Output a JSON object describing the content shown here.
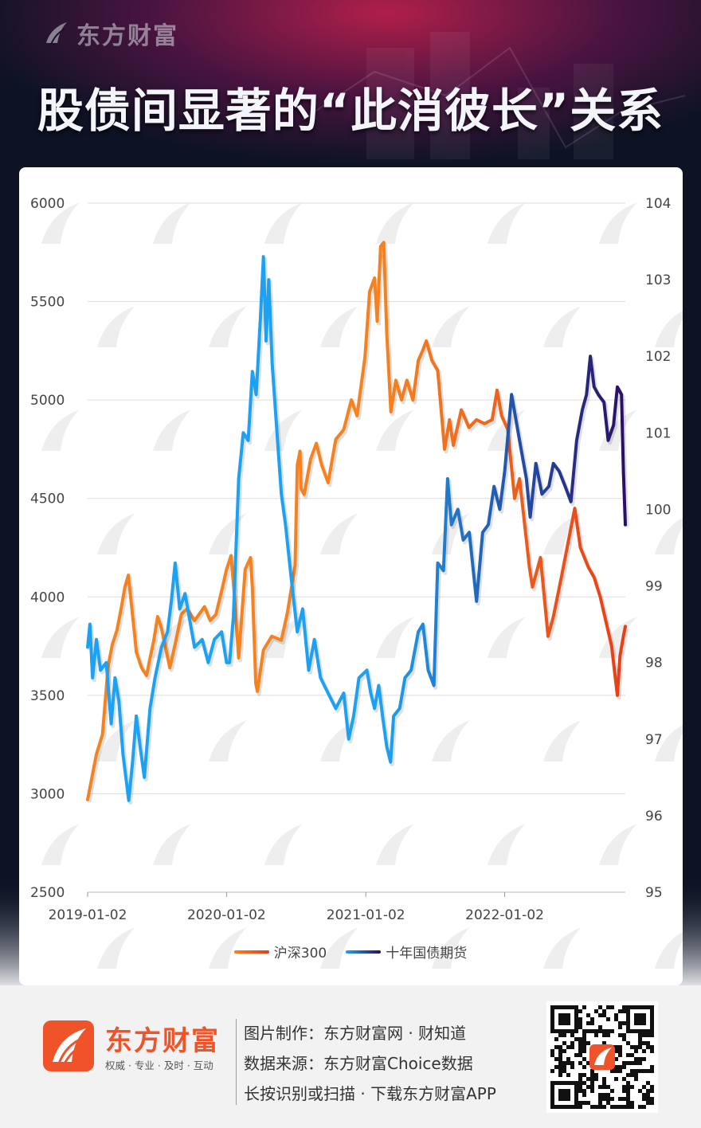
{
  "header": {
    "brand_watermark": "东方财富",
    "headline": "股债间显著的“此消彼长”关系"
  },
  "chart_data": {
    "type": "line",
    "title": "股债间显著的“此消彼长”关系",
    "x_ticks": [
      "2019-01-02",
      "2020-01-02",
      "2021-01-02",
      "2022-01-02"
    ],
    "x_range": [
      "2019-01-02",
      "2022-11-15"
    ],
    "y_left": {
      "ticks": [
        6000,
        5500,
        5000,
        4500,
        4000,
        3500,
        3000,
        2500
      ],
      "ylim": [
        2500,
        6000
      ]
    },
    "y_right": {
      "ticks": [
        104,
        103,
        102,
        101,
        100,
        99,
        98,
        97,
        96,
        95
      ],
      "ylim": [
        95,
        104
      ]
    },
    "grid": true,
    "legend_position": "bottom",
    "series": [
      {
        "name": "沪深300",
        "axis": "left",
        "color": "#f5821f",
        "end_color": "#e63f17",
        "points": [
          [
            "2019-01-02",
            2970
          ],
          [
            "2019-01-10",
            3050
          ],
          [
            "2019-01-25",
            3200
          ],
          [
            "2019-02-10",
            3300
          ],
          [
            "2019-02-25",
            3650
          ],
          [
            "2019-03-08",
            3760
          ],
          [
            "2019-03-20",
            3830
          ],
          [
            "2019-04-01",
            3950
          ],
          [
            "2019-04-10",
            4050
          ],
          [
            "2019-04-19",
            4110
          ],
          [
            "2019-05-06",
            3800
          ],
          [
            "2019-05-10",
            3720
          ],
          [
            "2019-05-24",
            3640
          ],
          [
            "2019-06-06",
            3600
          ],
          [
            "2019-06-14",
            3680
          ],
          [
            "2019-06-25",
            3780
          ],
          [
            "2019-07-05",
            3900
          ],
          [
            "2019-07-15",
            3840
          ],
          [
            "2019-08-06",
            3640
          ],
          [
            "2019-08-20",
            3760
          ],
          [
            "2019-09-05",
            3910
          ],
          [
            "2019-09-20",
            3940
          ],
          [
            "2019-10-10",
            3880
          ],
          [
            "2019-10-25",
            3920
          ],
          [
            "2019-11-05",
            3950
          ],
          [
            "2019-11-20",
            3880
          ],
          [
            "2019-12-05",
            3910
          ],
          [
            "2019-12-20",
            4030
          ],
          [
            "2020-01-02",
            4140
          ],
          [
            "2020-01-14",
            4210
          ],
          [
            "2020-01-23",
            4000
          ],
          [
            "2020-02-03",
            3690
          ],
          [
            "2020-02-20",
            4140
          ],
          [
            "2020-03-05",
            4200
          ],
          [
            "2020-03-10",
            4050
          ],
          [
            "2020-03-19",
            3560
          ],
          [
            "2020-03-23",
            3520
          ],
          [
            "2020-04-08",
            3730
          ],
          [
            "2020-04-30",
            3800
          ],
          [
            "2020-05-25",
            3780
          ],
          [
            "2020-06-10",
            3920
          ],
          [
            "2020-06-30",
            4160
          ],
          [
            "2020-07-06",
            4670
          ],
          [
            "2020-07-13",
            4740
          ],
          [
            "2020-07-16",
            4550
          ],
          [
            "2020-07-24",
            4520
          ],
          [
            "2020-08-10",
            4700
          ],
          [
            "2020-08-25",
            4780
          ],
          [
            "2020-09-08",
            4670
          ],
          [
            "2020-09-25",
            4580
          ],
          [
            "2020-10-15",
            4800
          ],
          [
            "2020-11-05",
            4850
          ],
          [
            "2020-11-25",
            5000
          ],
          [
            "2020-12-10",
            4920
          ],
          [
            "2020-12-31",
            5220
          ],
          [
            "2021-01-12",
            5550
          ],
          [
            "2021-01-25",
            5620
          ],
          [
            "2021-02-01",
            5400
          ],
          [
            "2021-02-10",
            5780
          ],
          [
            "2021-02-18",
            5800
          ],
          [
            "2021-02-26",
            5340
          ],
          [
            "2021-03-09",
            4940
          ],
          [
            "2021-03-22",
            5100
          ],
          [
            "2021-04-06",
            5000
          ],
          [
            "2021-04-20",
            5100
          ],
          [
            "2021-05-06",
            5000
          ],
          [
            "2021-05-20",
            5200
          ],
          [
            "2021-05-31",
            5250
          ],
          [
            "2021-06-10",
            5300
          ],
          [
            "2021-06-25",
            5200
          ],
          [
            "2021-07-10",
            5150
          ],
          [
            "2021-07-28",
            4750
          ],
          [
            "2021-08-10",
            4900
          ],
          [
            "2021-08-20",
            4770
          ],
          [
            "2021-09-10",
            4950
          ],
          [
            "2021-09-30",
            4860
          ],
          [
            "2021-10-20",
            4900
          ],
          [
            "2021-11-10",
            4880
          ],
          [
            "2021-11-30",
            4900
          ],
          [
            "2021-12-13",
            5050
          ],
          [
            "2021-12-25",
            4920
          ],
          [
            "2022-01-10",
            4850
          ],
          [
            "2022-01-28",
            4500
          ],
          [
            "2022-02-10",
            4600
          ],
          [
            "2022-03-08",
            4150
          ],
          [
            "2022-03-16",
            4050
          ],
          [
            "2022-04-06",
            4200
          ],
          [
            "2022-04-26",
            3800
          ],
          [
            "2022-05-10",
            3900
          ],
          [
            "2022-05-31",
            4100
          ],
          [
            "2022-06-15",
            4250
          ],
          [
            "2022-07-05",
            4450
          ],
          [
            "2022-07-20",
            4250
          ],
          [
            "2022-08-10",
            4150
          ],
          [
            "2022-08-25",
            4100
          ],
          [
            "2022-09-10",
            4000
          ],
          [
            "2022-09-28",
            3850
          ],
          [
            "2022-10-10",
            3750
          ],
          [
            "2022-10-25",
            3500
          ],
          [
            "2022-11-01",
            3700
          ],
          [
            "2022-11-10",
            3800
          ],
          [
            "2022-11-15",
            3850
          ]
        ]
      },
      {
        "name": "十年国债期货",
        "axis": "right",
        "color": "#1da1f2",
        "end_color": "#2a0f66",
        "points": [
          [
            "2019-01-02",
            98.2
          ],
          [
            "2019-01-08",
            98.5
          ],
          [
            "2019-01-15",
            97.8
          ],
          [
            "2019-01-25",
            98.3
          ],
          [
            "2019-02-05",
            97.9
          ],
          [
            "2019-02-20",
            98.0
          ],
          [
            "2019-03-05",
            97.2
          ],
          [
            "2019-03-15",
            97.8
          ],
          [
            "2019-03-25",
            97.5
          ],
          [
            "2019-04-05",
            96.8
          ],
          [
            "2019-04-20",
            96.2
          ],
          [
            "2019-04-30",
            96.7
          ],
          [
            "2019-05-10",
            97.3
          ],
          [
            "2019-05-20",
            96.9
          ],
          [
            "2019-05-31",
            96.5
          ],
          [
            "2019-06-15",
            97.4
          ],
          [
            "2019-06-28",
            97.8
          ],
          [
            "2019-07-15",
            98.2
          ],
          [
            "2019-07-31",
            98.4
          ],
          [
            "2019-08-10",
            98.8
          ],
          [
            "2019-08-20",
            99.3
          ],
          [
            "2019-09-01",
            98.7
          ],
          [
            "2019-09-15",
            98.9
          ],
          [
            "2019-10-10",
            98.2
          ],
          [
            "2019-10-30",
            98.3
          ],
          [
            "2019-11-15",
            98.0
          ],
          [
            "2019-12-01",
            98.3
          ],
          [
            "2019-12-20",
            98.4
          ],
          [
            "2020-01-02",
            98.0
          ],
          [
            "2020-01-10",
            98.0
          ],
          [
            "2020-01-20",
            98.6
          ],
          [
            "2020-02-03",
            100.4
          ],
          [
            "2020-02-15",
            101.0
          ],
          [
            "2020-02-28",
            100.9
          ],
          [
            "2020-03-10",
            101.8
          ],
          [
            "2020-03-20",
            101.5
          ],
          [
            "2020-03-31",
            102.5
          ],
          [
            "2020-04-08",
            103.3
          ],
          [
            "2020-04-15",
            102.2
          ],
          [
            "2020-04-22",
            103.0
          ],
          [
            "2020-05-01",
            101.9
          ],
          [
            "2020-05-15",
            100.9
          ],
          [
            "2020-05-25",
            100.2
          ],
          [
            "2020-06-05",
            99.8
          ],
          [
            "2020-06-20",
            99.1
          ],
          [
            "2020-07-06",
            98.4
          ],
          [
            "2020-07-20",
            98.7
          ],
          [
            "2020-08-05",
            97.9
          ],
          [
            "2020-08-20",
            98.3
          ],
          [
            "2020-09-05",
            97.8
          ],
          [
            "2020-09-25",
            97.6
          ],
          [
            "2020-10-15",
            97.4
          ],
          [
            "2020-11-05",
            97.6
          ],
          [
            "2020-11-18",
            97.0
          ],
          [
            "2020-12-01",
            97.3
          ],
          [
            "2020-12-15",
            97.8
          ],
          [
            "2021-01-05",
            97.9
          ],
          [
            "2021-01-15",
            97.6
          ],
          [
            "2021-01-25",
            97.4
          ],
          [
            "2021-02-05",
            97.7
          ],
          [
            "2021-02-15",
            97.3
          ],
          [
            "2021-02-26",
            96.9
          ],
          [
            "2021-03-08",
            96.7
          ],
          [
            "2021-03-16",
            97.3
          ],
          [
            "2021-04-01",
            97.4
          ],
          [
            "2021-04-15",
            97.8
          ],
          [
            "2021-05-01",
            97.9
          ],
          [
            "2021-05-20",
            98.4
          ],
          [
            "2021-06-01",
            98.5
          ],
          [
            "2021-06-15",
            97.9
          ],
          [
            "2021-06-30",
            97.7
          ],
          [
            "2021-07-10",
            99.3
          ],
          [
            "2021-07-25",
            99.2
          ],
          [
            "2021-08-05",
            100.4
          ],
          [
            "2021-08-15",
            99.8
          ],
          [
            "2021-09-01",
            100.0
          ],
          [
            "2021-09-15",
            99.6
          ],
          [
            "2021-10-01",
            99.7
          ],
          [
            "2021-10-20",
            98.8
          ],
          [
            "2021-11-05",
            99.7
          ],
          [
            "2021-11-20",
            99.8
          ],
          [
            "2021-12-05",
            100.3
          ],
          [
            "2021-12-20",
            100.0
          ],
          [
            "2022-01-02",
            100.5
          ],
          [
            "2022-01-20",
            101.5
          ],
          [
            "2022-02-10",
            100.9
          ],
          [
            "2022-02-28",
            100.4
          ],
          [
            "2022-03-10",
            99.9
          ],
          [
            "2022-03-25",
            100.6
          ],
          [
            "2022-04-10",
            100.2
          ],
          [
            "2022-04-28",
            100.3
          ],
          [
            "2022-05-10",
            100.6
          ],
          [
            "2022-05-25",
            100.5
          ],
          [
            "2022-06-10",
            100.3
          ],
          [
            "2022-06-25",
            100.1
          ],
          [
            "2022-07-10",
            100.9
          ],
          [
            "2022-07-25",
            101.3
          ],
          [
            "2022-08-05",
            101.5
          ],
          [
            "2022-08-15",
            102.0
          ],
          [
            "2022-08-25",
            101.6
          ],
          [
            "2022-09-05",
            101.5
          ],
          [
            "2022-09-20",
            101.4
          ],
          [
            "2022-10-01",
            100.9
          ],
          [
            "2022-10-15",
            101.1
          ],
          [
            "2022-10-25",
            101.6
          ],
          [
            "2022-11-05",
            101.5
          ],
          [
            "2022-11-10",
            100.5
          ],
          [
            "2022-11-15",
            99.8
          ]
        ]
      }
    ]
  },
  "legend": {
    "items": [
      "沪深300",
      "十年国债期货"
    ]
  },
  "footer": {
    "brand": "东方财富",
    "slogan": "权威 · 专业 · 及时 · 互动",
    "credit_line": "图片制作：东方财富网 · 财知道",
    "source_line": "数据来源：东方财富Choice数据",
    "cta_line": "长按识别或扫描 · 下载东方财富APP"
  },
  "colors": {
    "brand_orange": "#f0532a",
    "bg_dark": "#0d1324"
  }
}
